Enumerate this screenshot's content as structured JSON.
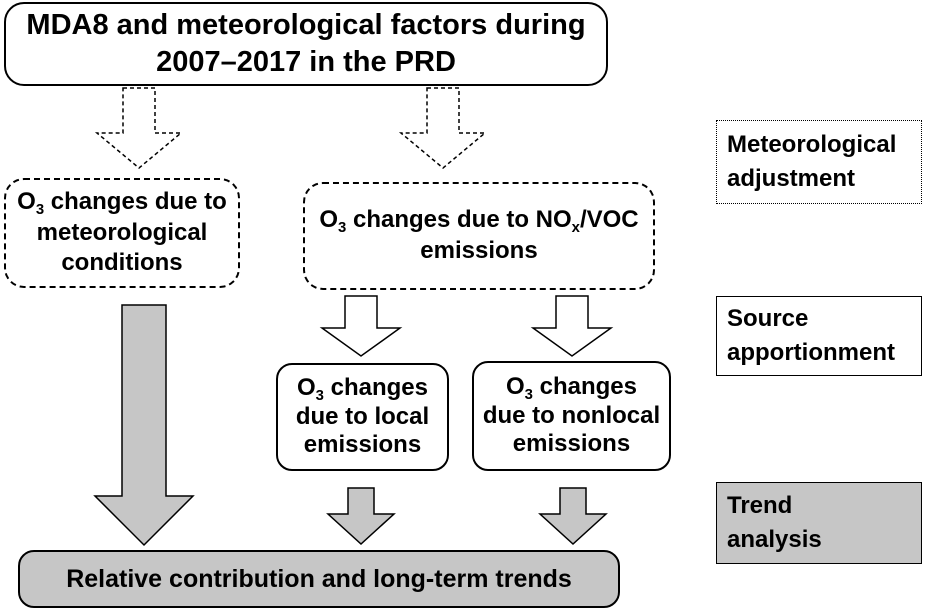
{
  "top_box": {
    "line1": "MDA8 and meteorological factors during",
    "line2": "2007–2017 in the PRD"
  },
  "met_box": {
    "o3_prefix": "O",
    "o3_sub": "3",
    "line1_rest": " changes due to",
    "line2": "meteorological",
    "line3": "conditions"
  },
  "emis_box": {
    "o3_prefix": "O",
    "o3_sub": "3",
    "line1_mid": " changes due to NO",
    "nox_sub": "x",
    "line1_end": "/VOC",
    "line2": "emissions"
  },
  "local_box": {
    "o3_prefix": "O",
    "o3_sub": "3",
    "line1_rest": " changes",
    "line2": "due to local",
    "line3": "emissions"
  },
  "nonlocal_box": {
    "o3_prefix": "O",
    "o3_sub": "3",
    "line1_rest": " changes",
    "line2": "due to nonlocal",
    "line3": "emissions"
  },
  "bottom_box": {
    "label": "Relative contribution and long-term trends"
  },
  "legend": {
    "met_adjustment_line1": "Meteorological",
    "met_adjustment_line2": "adjustment",
    "source_line1": "Source",
    "source_line2": "apportionment",
    "trend_line1": "Trend",
    "trend_line2": "analysis"
  },
  "colors": {
    "gray_fill": "#c6c6c6",
    "stroke": "#000000",
    "background": "#ffffff"
  }
}
